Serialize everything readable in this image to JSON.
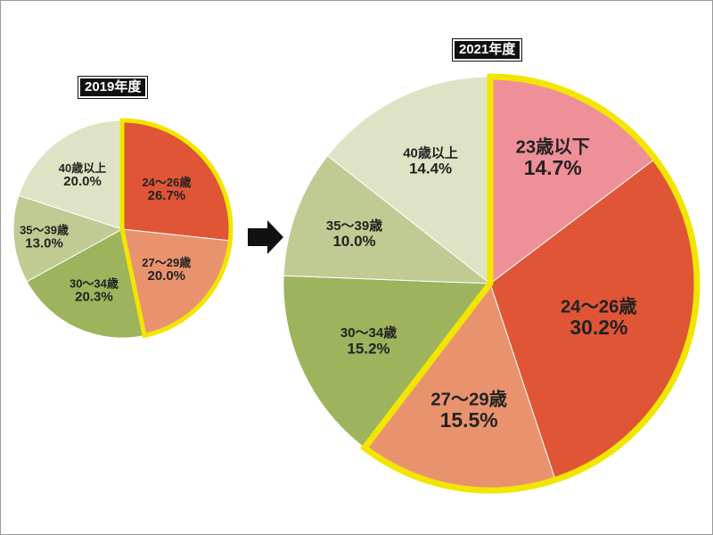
{
  "chart_data": [
    {
      "type": "pie",
      "title": "2019年度",
      "slices": [
        {
          "label": "24〜26歳",
          "value": 26.7,
          "display": "26.7%",
          "color": "#e05536",
          "text_color": "#ffffff"
        },
        {
          "label": "27〜29歳",
          "value": 20.0,
          "display": "20.0%",
          "color": "#e9936e",
          "text_color": "#ffffff"
        },
        {
          "label": "30〜34歳",
          "value": 20.3,
          "display": "20.3%",
          "color": "#9db35c",
          "text_color": "#ffffff"
        },
        {
          "label": "35〜39歳",
          "value": 13.0,
          "display": "13.0%",
          "color": "#bfcb93",
          "text_color": "#222222"
        },
        {
          "label": "40歳以上",
          "value": 20.0,
          "display": "20.0%",
          "color": "#dfe3c6",
          "text_color": "#222222"
        }
      ],
      "highlighted": [
        "24〜26歳",
        "27〜29歳"
      ],
      "highlight_color": "#f2e600"
    },
    {
      "type": "pie",
      "title": "2021年度",
      "slices": [
        {
          "label": "23歳以下",
          "value": 14.7,
          "display": "14.7%",
          "color": "#ef8f98",
          "text_color": "#ffffff"
        },
        {
          "label": "24〜26歳",
          "value": 30.2,
          "display": "30.2%",
          "color": "#e05536",
          "text_color": "#ffffff"
        },
        {
          "label": "27〜29歳",
          "value": 15.5,
          "display": "15.5%",
          "color": "#e9936e",
          "text_color": "#ffffff"
        },
        {
          "label": "30〜34歳",
          "value": 15.2,
          "display": "15.2%",
          "color": "#9db35c",
          "text_color": "#ffffff"
        },
        {
          "label": "35〜39歳",
          "value": 10.0,
          "display": "10.0%",
          "color": "#bfcb93",
          "text_color": "#222222"
        },
        {
          "label": "40歳以上",
          "value": 14.4,
          "display": "14.4%",
          "color": "#dfe3c6",
          "text_color": "#222222"
        }
      ],
      "highlighted": [
        "23歳以下",
        "24〜26歳",
        "27〜29歳"
      ],
      "highlight_color": "#f2e600"
    }
  ],
  "arrow_icon": "right-arrow-icon"
}
